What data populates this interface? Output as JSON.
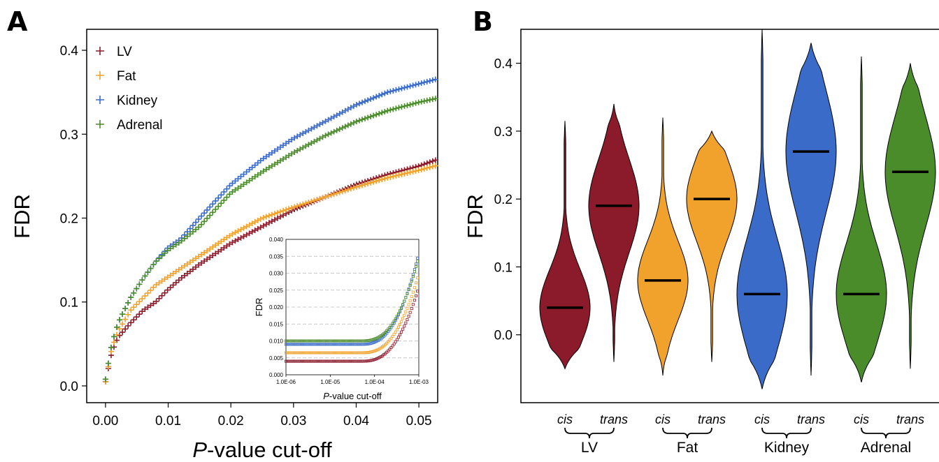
{
  "chart_data": [
    {
      "panel": "A",
      "type": "scatter",
      "marker": "+",
      "xlabel_italic": "P",
      "xlabel_rest": "-value cut-off",
      "ylabel": "FDR",
      "xlim": [
        -0.003,
        0.053
      ],
      "ylim": [
        -0.02,
        0.425
      ],
      "xticks": [
        0,
        0.01,
        0.02,
        0.03,
        0.04,
        0.05
      ],
      "xtick_labels": [
        "0.00",
        "0.01",
        "0.02",
        "0.03",
        "0.04",
        "0.05"
      ],
      "yticks": [
        0,
        0.1,
        0.2,
        0.3,
        0.4
      ],
      "ytick_labels": [
        "0.0",
        "0.1",
        "0.2",
        "0.3",
        "0.4"
      ],
      "legend_position": "top-left",
      "series": [
        {
          "name": "LV",
          "color": "#8B1A2B",
          "x": [
            0,
            0.001,
            0.002,
            0.004,
            0.006,
            0.008,
            0.01,
            0.012,
            0.015,
            0.02,
            0.025,
            0.03,
            0.035,
            0.04,
            0.045,
            0.05,
            0.053
          ],
          "y": [
            0.005,
            0.04,
            0.058,
            0.075,
            0.09,
            0.1,
            0.115,
            0.128,
            0.145,
            0.17,
            0.19,
            0.21,
            0.225,
            0.24,
            0.252,
            0.262,
            0.27
          ]
        },
        {
          "name": "Fat",
          "color": "#F0A22C",
          "x": [
            0,
            0.001,
            0.002,
            0.004,
            0.006,
            0.008,
            0.01,
            0.012,
            0.015,
            0.02,
            0.025,
            0.03,
            0.035,
            0.04,
            0.045,
            0.05,
            0.053
          ],
          "y": [
            0.005,
            0.045,
            0.065,
            0.09,
            0.105,
            0.12,
            0.13,
            0.14,
            0.155,
            0.18,
            0.2,
            0.213,
            0.225,
            0.237,
            0.248,
            0.257,
            0.263
          ]
        },
        {
          "name": "Kidney",
          "color": "#3A6BC9",
          "x": [
            0,
            0.001,
            0.002,
            0.004,
            0.006,
            0.008,
            0.01,
            0.012,
            0.015,
            0.02,
            0.025,
            0.03,
            0.035,
            0.04,
            0.045,
            0.05,
            0.053
          ],
          "y": [
            0.008,
            0.05,
            0.075,
            0.105,
            0.128,
            0.148,
            0.165,
            0.175,
            0.2,
            0.24,
            0.27,
            0.295,
            0.315,
            0.335,
            0.35,
            0.36,
            0.366
          ]
        },
        {
          "name": "Adrenal",
          "color": "#4A8C2A",
          "x": [
            0,
            0.001,
            0.002,
            0.004,
            0.006,
            0.008,
            0.01,
            0.012,
            0.015,
            0.02,
            0.025,
            0.03,
            0.035,
            0.04,
            0.045,
            0.05,
            0.053
          ],
          "y": [
            0.008,
            0.05,
            0.075,
            0.105,
            0.128,
            0.148,
            0.162,
            0.172,
            0.19,
            0.23,
            0.255,
            0.278,
            0.298,
            0.315,
            0.328,
            0.338,
            0.343
          ]
        }
      ],
      "inset": {
        "type": "scatter",
        "xscale": "log",
        "xlabel_italic": "P",
        "xlabel_rest": "-value cut-off",
        "ylabel": "FDR",
        "xlim": [
          1e-06,
          0.001
        ],
        "ylim": [
          0,
          0.04
        ],
        "xticks": [
          1e-06,
          1e-05,
          0.0001,
          0.001
        ],
        "xtick_labels": [
          "1.0E-06",
          "1.0E-05",
          "1.0E-04",
          "1.0E-03"
        ],
        "yticks": [
          0,
          0.005,
          0.01,
          0.015,
          0.02,
          0.025,
          0.03,
          0.035,
          0.04
        ],
        "ytick_labels": [
          "0.000",
          "0.005",
          "0.010",
          "0.015",
          "0.020",
          "0.025",
          "0.030",
          "0.035",
          "0.040"
        ],
        "grid": "horizontal-dashed",
        "series": [
          {
            "name": "LV",
            "color": "#8B1A2B",
            "base": 0.004,
            "end": 0.026
          },
          {
            "name": "Fat",
            "color": "#F0A22C",
            "base": 0.0065,
            "end": 0.03
          },
          {
            "name": "Kidney",
            "color": "#3A6BC9",
            "base": 0.009,
            "end": 0.036
          },
          {
            "name": "Adrenal",
            "color": "#4A8C2A",
            "base": 0.01,
            "end": 0.035
          }
        ]
      }
    },
    {
      "panel": "B",
      "type": "violin",
      "ylabel": "FDR",
      "ylim": [
        -0.1,
        0.45
      ],
      "yticks": [
        0,
        0.1,
        0.2,
        0.3,
        0.4
      ],
      "ytick_labels": [
        "0.0",
        "0.1",
        "0.2",
        "0.3",
        "0.4"
      ],
      "groups": [
        {
          "name": "LV",
          "color": "#8B1A2B",
          "violins": [
            {
              "label": "cis",
              "min": -0.05,
              "max": 0.315,
              "median": 0.04
            },
            {
              "label": "trans",
              "min": -0.04,
              "max": 0.34,
              "median": 0.19
            }
          ]
        },
        {
          "name": "Fat",
          "color": "#F0A22C",
          "violins": [
            {
              "label": "cis",
              "min": -0.06,
              "max": 0.32,
              "median": 0.08
            },
            {
              "label": "trans",
              "min": -0.04,
              "max": 0.3,
              "median": 0.2
            }
          ]
        },
        {
          "name": "Kidney",
          "color": "#3A6BC9",
          "violins": [
            {
              "label": "cis",
              "min": -0.08,
              "max": 0.45,
              "median": 0.06
            },
            {
              "label": "trans",
              "min": -0.06,
              "max": 0.43,
              "median": 0.27
            }
          ]
        },
        {
          "name": "Adrenal",
          "color": "#4A8C2A",
          "violins": [
            {
              "label": "cis",
              "min": -0.07,
              "max": 0.41,
              "median": 0.06
            },
            {
              "label": "trans",
              "min": -0.05,
              "max": 0.4,
              "median": 0.24
            }
          ]
        }
      ]
    }
  ],
  "panel_letters": [
    "A",
    "B"
  ]
}
